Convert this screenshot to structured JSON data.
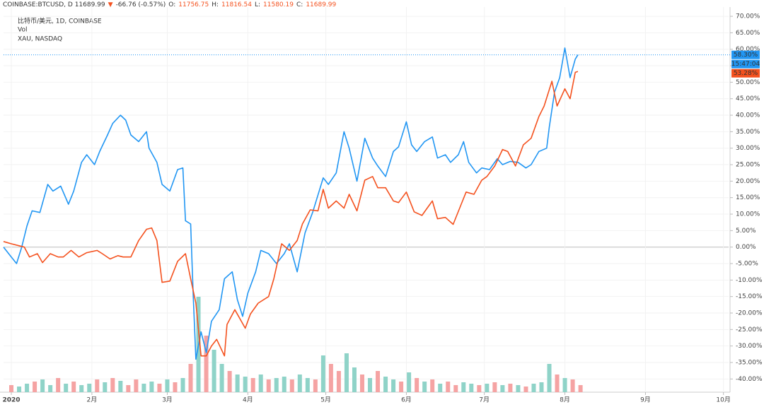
{
  "header": [
    {
      "text": "COINBASE:BTCUSD, D 11689.99",
      "color": "#333333"
    },
    {
      "text": "▼",
      "color": "#f4511e"
    },
    {
      "text": "-66.76 (-0.57%)",
      "color": "#333333"
    },
    {
      "text": "O:",
      "color": "#333333"
    },
    {
      "text": "11756.75",
      "color": "#f4511e"
    },
    {
      "text": "H:",
      "color": "#333333"
    },
    {
      "text": "11816.54",
      "color": "#f4511e"
    },
    {
      "text": "L:",
      "color": "#333333"
    },
    {
      "text": "11580.19",
      "color": "#f4511e"
    },
    {
      "text": "C:",
      "color": "#333333"
    },
    {
      "text": "11689.99",
      "color": "#f4511e"
    }
  ],
  "chart_data": {
    "type": "line",
    "xlim": [
      -3,
      276
    ],
    "xticks": [
      {
        "value": 0,
        "label": "2020"
      },
      {
        "value": 31,
        "label": "2月"
      },
      {
        "value": 60,
        "label": "3月"
      },
      {
        "value": 91,
        "label": "4月"
      },
      {
        "value": 121,
        "label": "5月"
      },
      {
        "value": 152,
        "label": "6月"
      },
      {
        "value": 182,
        "label": "7月"
      },
      {
        "value": 213,
        "label": "8月"
      },
      {
        "value": 244,
        "label": "9月"
      },
      {
        "value": 274,
        "label": "10月"
      }
    ],
    "ylim": [
      -44,
      72.8
    ],
    "yticks": [
      {
        "value": 70,
        "label": "70.00%"
      },
      {
        "value": 65,
        "label": "65.00%"
      },
      {
        "value": 60,
        "label": "60.00%"
      },
      {
        "value": 55,
        "label": "55.00%"
      },
      {
        "value": 50,
        "label": "50.00%"
      },
      {
        "value": 45,
        "label": "45.00%"
      },
      {
        "value": 40,
        "label": "40.00%"
      },
      {
        "value": 35,
        "label": "35.00%"
      },
      {
        "value": 30,
        "label": "30.00%"
      },
      {
        "value": 25,
        "label": "25.00%"
      },
      {
        "value": 20,
        "label": "20.00%"
      },
      {
        "value": 15,
        "label": "15.00%"
      },
      {
        "value": 10,
        "label": "10.00%"
      },
      {
        "value": 5,
        "label": "5.00%"
      },
      {
        "value": 0,
        "label": "0.00%"
      },
      {
        "value": -5,
        "label": "-5.00%"
      },
      {
        "value": -10,
        "label": "-10.00%"
      },
      {
        "value": -15,
        "label": "-15.00%"
      },
      {
        "value": -20,
        "label": "-20.00%"
      },
      {
        "value": -25,
        "label": "-25.00%"
      },
      {
        "value": -30,
        "label": "-30.00%"
      },
      {
        "value": -35,
        "label": "-35.00%"
      },
      {
        "value": -40,
        "label": "-40.00%"
      }
    ],
    "grid": true,
    "series": [
      {
        "name": "比特币/美元, 1D, COINBASE",
        "color": "#2196f3",
        "x": [
          -3,
          0,
          2,
          4,
          6,
          8,
          11,
          14,
          16,
          19,
          22,
          24,
          27,
          29,
          32,
          34,
          37,
          39,
          42,
          44,
          46,
          49,
          52,
          53,
          56,
          58,
          61,
          64,
          66,
          67,
          69,
          70,
          71,
          73,
          75,
          77,
          80,
          82,
          85,
          87,
          89,
          91,
          94,
          96,
          99,
          102,
          105,
          107,
          110,
          113,
          116,
          120,
          122,
          125,
          128,
          130,
          133,
          136,
          139,
          141,
          144,
          147,
          149,
          152,
          154,
          156,
          159,
          162,
          164,
          167,
          169,
          172,
          174,
          176,
          179,
          181,
          184,
          187,
          189,
          192,
          195,
          198,
          200,
          203,
          206,
          207,
          209,
          211,
          213,
          215,
          217,
          218
        ],
        "values": [
          0,
          -3,
          -5,
          0,
          6.4,
          11,
          10.5,
          19,
          17,
          18.5,
          13,
          17,
          25.7,
          28,
          25,
          29,
          34,
          37.5,
          40,
          38.5,
          34,
          32,
          35,
          30,
          25.7,
          19,
          17,
          23.5,
          24,
          8,
          7,
          -15,
          -34,
          -25.7,
          -32,
          -22.5,
          -19,
          -9.6,
          -7.5,
          -16,
          -21,
          -14,
          -7.5,
          -1,
          -2,
          -5,
          -2,
          1,
          -7.5,
          4.3,
          10.7,
          21,
          19,
          22.5,
          35,
          30,
          20,
          33,
          27,
          24.6,
          21.4,
          29,
          30.4,
          38,
          31,
          29,
          32,
          33.4,
          27,
          28,
          25.7,
          28,
          32,
          25.7,
          22.5,
          24,
          23.5,
          26.8,
          25,
          26,
          25.7,
          24,
          25,
          29,
          30,
          36.4,
          47,
          51.4,
          60.4,
          51.4,
          57,
          58.3
        ],
        "last_label": "58.30%"
      },
      {
        "name": "XAU, NASDAQ",
        "color": "#f4511e",
        "x": [
          -3,
          0,
          3,
          5,
          7,
          10,
          12,
          15,
          18,
          20,
          23,
          26,
          29,
          33,
          35,
          38,
          41,
          43,
          46,
          49,
          52,
          54,
          56,
          58,
          61,
          64,
          67,
          69,
          71,
          73,
          75,
          77,
          79,
          82,
          83,
          86,
          90,
          92,
          95,
          99,
          101,
          104,
          107,
          110,
          112,
          115,
          118,
          120,
          122,
          125,
          128,
          130,
          133,
          136,
          139,
          141,
          144,
          147,
          149,
          152,
          155,
          158,
          160,
          162,
          164,
          167,
          170,
          173,
          175,
          178,
          181,
          183,
          186,
          189,
          191,
          194,
          197,
          200,
          203,
          205,
          208,
          210,
          213,
          215,
          217,
          218
        ],
        "values": [
          1.7,
          1,
          0.4,
          0,
          -3,
          -2,
          -4.7,
          -2,
          -3,
          -3,
          -1,
          -3,
          -1.7,
          -1,
          -2,
          -3.6,
          -2.6,
          -3,
          -3,
          2,
          5.4,
          5.8,
          2,
          -10.7,
          -10.3,
          -4.3,
          -2,
          -9.6,
          -17,
          -33,
          -33,
          -30,
          -28,
          -33,
          -23.5,
          -19,
          -24.6,
          -20.3,
          -17,
          -15,
          -9.6,
          1,
          -1,
          2,
          7,
          11.3,
          11,
          17.5,
          11.8,
          14,
          11.8,
          16,
          11,
          20.3,
          21.4,
          18,
          18,
          14,
          13.5,
          16.7,
          10.7,
          9.6,
          11.8,
          14,
          8.6,
          9,
          6.9,
          12.8,
          16.7,
          16,
          20.3,
          21.4,
          24.6,
          29.6,
          29,
          24.6,
          31,
          33,
          39.6,
          42.8,
          50.3,
          42.8,
          48,
          45,
          53,
          53.28
        ],
        "last_label": "53.28%"
      }
    ],
    "time_label": "15:47:04",
    "volume": {
      "name": "Vol",
      "vlim": [
        0,
        140
      ],
      "up_color": "#8fd3c8",
      "down_color": "#f5a3a3",
      "x": [
        0,
        3,
        6,
        9,
        12,
        15,
        18,
        21,
        24,
        27,
        30,
        33,
        36,
        39,
        42,
        45,
        48,
        51,
        54,
        57,
        60,
        63,
        66,
        69,
        72,
        75,
        78,
        81,
        84,
        87,
        90,
        93,
        96,
        99,
        102,
        105,
        108,
        111,
        114,
        117,
        120,
        123,
        126,
        129,
        132,
        135,
        138,
        141,
        144,
        147,
        150,
        153,
        156,
        159,
        162,
        165,
        168,
        171,
        174,
        177,
        180,
        183,
        186,
        189,
        192,
        195,
        198,
        201,
        204,
        207,
        210,
        213,
        216,
        219
      ],
      "values": [
        10,
        8,
        12,
        15,
        18,
        10,
        20,
        12,
        15,
        10,
        12,
        18,
        14,
        20,
        16,
        10,
        18,
        12,
        15,
        12,
        18,
        14,
        20,
        40,
        135,
        80,
        60,
        40,
        30,
        25,
        22,
        20,
        25,
        18,
        20,
        22,
        18,
        25,
        20,
        18,
        52,
        40,
        30,
        55,
        35,
        25,
        20,
        30,
        22,
        18,
        15,
        28,
        20,
        15,
        18,
        12,
        15,
        10,
        14,
        12,
        10,
        12,
        14,
        10,
        12,
        10,
        8,
        12,
        14,
        40,
        25,
        20,
        18,
        10
      ],
      "up": [
        false,
        true,
        true,
        false,
        true,
        true,
        false,
        true,
        false,
        true,
        true,
        false,
        true,
        false,
        true,
        false,
        false,
        true,
        true,
        false,
        true,
        false,
        true,
        false,
        true,
        false,
        true,
        true,
        false,
        true,
        true,
        false,
        true,
        false,
        true,
        true,
        false,
        true,
        true,
        false,
        true,
        false,
        false,
        true,
        true,
        false,
        true,
        false,
        true,
        true,
        false,
        true,
        false,
        true,
        false,
        true,
        false,
        false,
        true,
        true,
        false,
        true,
        false,
        true,
        false,
        true,
        false,
        true,
        true,
        true,
        false,
        true,
        false,
        false
      ]
    }
  }
}
